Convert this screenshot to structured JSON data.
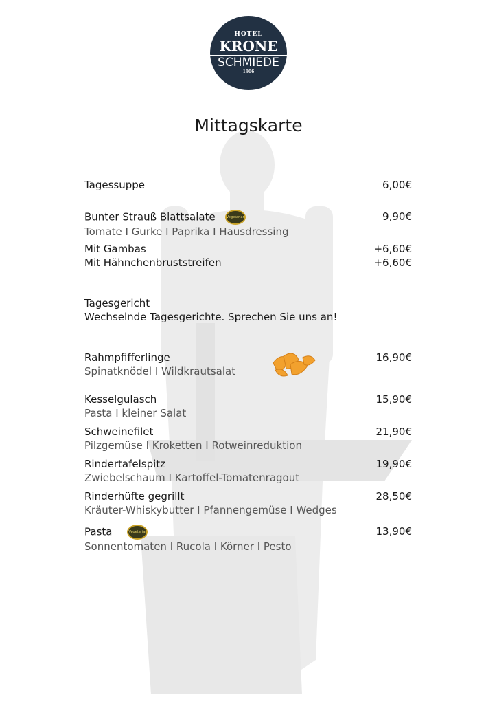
{
  "logo": {
    "line1": "HOTEL",
    "line2": "KRONE",
    "line3": "SCHMIEDE",
    "line4": "1906"
  },
  "title": "Mittagskarte",
  "vegetarian_badge": "Vegetarian",
  "items": [
    {
      "name": "Tagessuppe",
      "price": "6,00€"
    },
    {
      "name": "Bunter Strauß Blattsalate",
      "desc": "Tomate I Gurke I Paprika I Hausdressing",
      "price": "9,90€",
      "vegetarian": true
    },
    {
      "name": "Mit Gambas",
      "price": "+6,60€"
    },
    {
      "name": "Mit Hähnchenbruststreifen",
      "price": "+6,60€"
    },
    {
      "name": "Tagesgericht",
      "desc": "Wechselnde Tagesgerichte. Sprechen Sie uns an!"
    },
    {
      "name": "Rahmpfifferlinge",
      "desc": "Spinatknödel I Wildkrautsalat",
      "price": "16,90€"
    },
    {
      "name": "Kesselgulasch",
      "desc": "Pasta I kleiner Salat",
      "price": "15,90€"
    },
    {
      "name": "Schweinefilet",
      "desc": "Pilzgemüse I Kroketten I Rotweinreduktion",
      "price": "21,90€"
    },
    {
      "name": "Rindertafelspitz",
      "desc": "Zwiebelschaum I Kartoffel-Tomatenragout",
      "price": "19,90€"
    },
    {
      "name": "Rinderhüfte gegrillt",
      "desc": "Kräuter-Whiskybutter I Pfannengemüse I Wedges",
      "price": "28,50€"
    },
    {
      "name": "Pasta",
      "desc": "Sonnentomaten I Rucola I Körner I Pesto",
      "price": "13,90€",
      "vegetarian": true
    }
  ],
  "colors": {
    "logo_bg": "#223143",
    "accent": "#f2a12e"
  }
}
